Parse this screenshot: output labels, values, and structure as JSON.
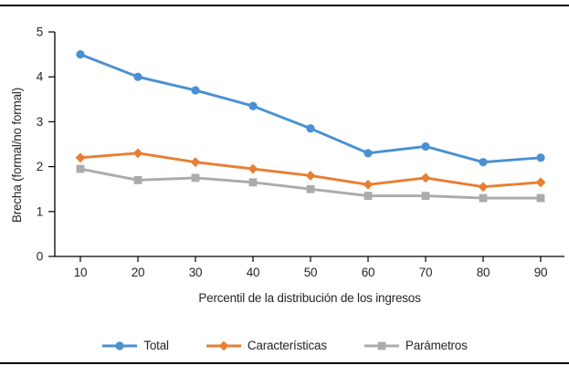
{
  "chart_data": {
    "type": "line",
    "title": "",
    "categories": [
      10,
      20,
      30,
      40,
      50,
      60,
      70,
      80,
      90
    ],
    "series": [
      {
        "name": "Total",
        "marker": "circle",
        "color": "#4a90d2",
        "values": [
          4.5,
          4.0,
          3.7,
          3.35,
          2.85,
          2.3,
          2.45,
          2.1,
          2.2
        ]
      },
      {
        "name": "Características",
        "marker": "diamond",
        "color": "#e87e33",
        "values": [
          2.2,
          2.3,
          2.1,
          1.95,
          1.8,
          1.6,
          1.75,
          1.55,
          1.65
        ]
      },
      {
        "name": "Parámetros",
        "marker": "square",
        "color": "#ababab",
        "values": [
          1.95,
          1.7,
          1.75,
          1.65,
          1.5,
          1.35,
          1.35,
          1.3,
          1.3
        ]
      }
    ],
    "xlabel": "Percentil de la distribución de los ingresos",
    "ylabel": "Brecha (formal/no formal)",
    "ylim": [
      0,
      5
    ],
    "yticks": [
      0,
      1,
      2,
      3,
      4,
      5
    ],
    "grid": false,
    "legend_position": "bottom",
    "axis_color": "#000000",
    "text_color": "#262626"
  }
}
